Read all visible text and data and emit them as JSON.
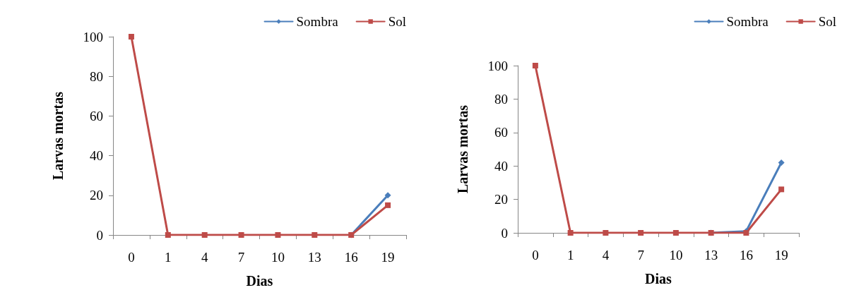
{
  "chart_data": [
    {
      "type": "line",
      "xlabel": "Dias",
      "ylabel": "Larvas mortas",
      "categories": [
        "0",
        "1",
        "4",
        "7",
        "10",
        "13",
        "16",
        "19"
      ],
      "ylim": [
        0,
        100
      ],
      "yticks": [
        0,
        20,
        40,
        60,
        80,
        100
      ],
      "grid": false,
      "legend": "top right",
      "line_style": "solid",
      "series": [
        {
          "name": "Sombra",
          "color": "#4a7ebb",
          "marker": "diamond",
          "values": [
            null,
            null,
            null,
            null,
            null,
            null,
            0,
            20
          ]
        },
        {
          "name": "Sol",
          "color": "#be4b48",
          "marker": "square",
          "values": [
            100,
            0,
            0,
            0,
            0,
            0,
            0,
            15
          ]
        }
      ]
    },
    {
      "type": "line",
      "xlabel": "Dias",
      "ylabel": "Larvas mortas",
      "categories": [
        "0",
        "1",
        "4",
        "7",
        "10",
        "13",
        "16",
        "19"
      ],
      "ylim": [
        0,
        100
      ],
      "yticks": [
        0,
        20,
        40,
        60,
        80,
        100
      ],
      "grid": false,
      "legend": "top right",
      "line_style": "solid",
      "series": [
        {
          "name": "Sombra",
          "color": "#4a7ebb",
          "marker": "diamond",
          "values": [
            null,
            null,
            null,
            null,
            null,
            0,
            1,
            42
          ]
        },
        {
          "name": "Sol",
          "color": "#be4b48",
          "marker": "square",
          "values": [
            100,
            0,
            0,
            0,
            0,
            0,
            0,
            26
          ]
        }
      ]
    }
  ]
}
